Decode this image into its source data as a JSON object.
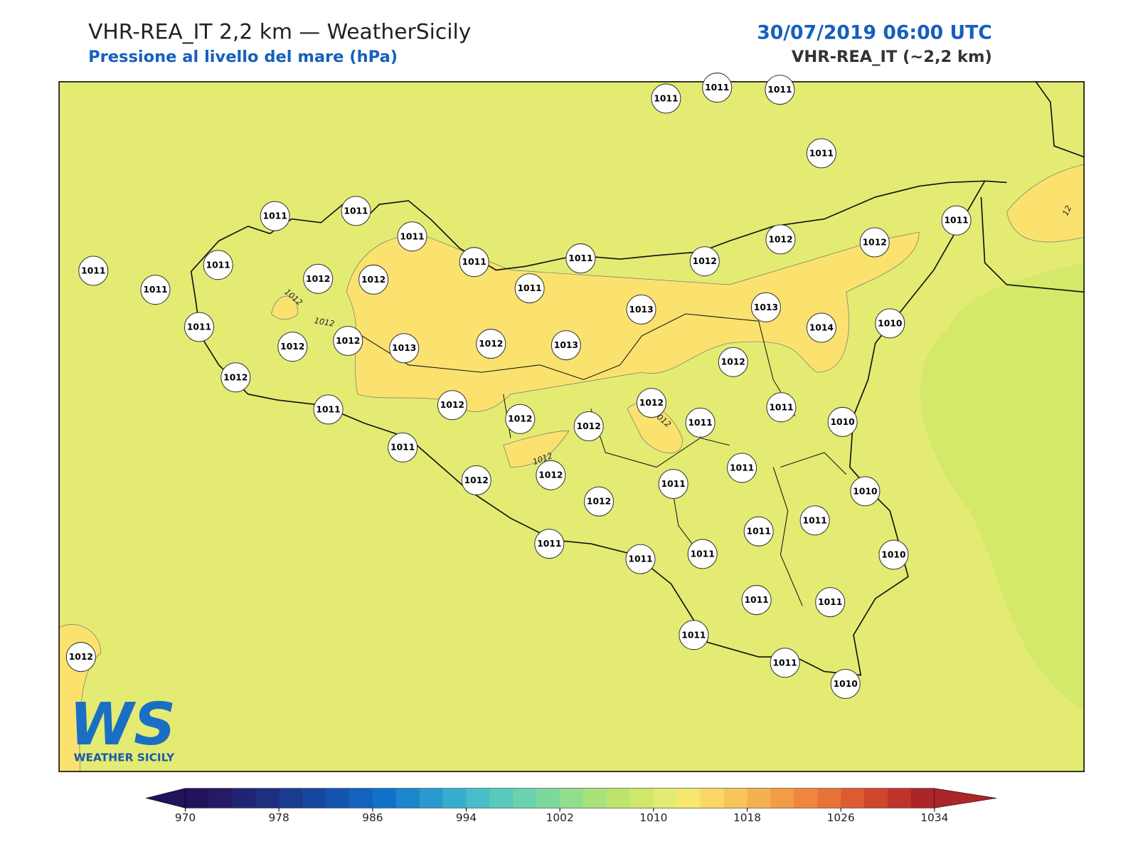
{
  "header": {
    "title": "VHR-REA_IT 2,2 km — WeatherSicily",
    "subtitle": "Pressione al livello del mare (hPa)",
    "datetime": "30/07/2019 06:00 UTC",
    "model": "VHR-REA_IT (~2,2 km)"
  },
  "map": {
    "stations": [
      1011,
      1011,
      1011,
      1011,
      1011,
      1011,
      1011,
      1011,
      1011,
      1011,
      1011,
      1011,
      1011,
      1012,
      1012,
      1011,
      1012,
      1012,
      1013,
      1012,
      1013,
      1012,
      1011,
      1012,
      1012,
      1012,
      1011,
      1012,
      1012,
      1012,
      1011,
      1011,
      1013,
      1012,
      1012,
      1012,
      1011,
      1013,
      1014,
      1010,
      1012,
      1012,
      1011,
      1011,
      1010,
      1011,
      1011,
      1010,
      1011,
      1011,
      1011,
      1010,
      1011,
      1011,
      1011,
      1011,
      1010,
      1012
    ],
    "contour_labels": [
      "1012",
      "1012",
      "1012",
      "1012",
      "12"
    ]
  },
  "colorbar": {
    "ticks": [
      970,
      978,
      986,
      994,
      1002,
      1010,
      1018,
      1026,
      1034
    ],
    "colors": [
      "#23135a",
      "#241a66",
      "#202472",
      "#1e2f80",
      "#1a3b8e",
      "#1748a0",
      "#1454b0",
      "#1163be",
      "#0f72c8",
      "#1c86cc",
      "#2a99d1",
      "#35aece",
      "#48bec8",
      "#5ac9bd",
      "#6ad2ae",
      "#7ed89c",
      "#93de8a",
      "#a8e27a",
      "#bde56c",
      "#d0e86a",
      "#e2eb73",
      "#f7e76c",
      "#fbd865",
      "#f8c55a",
      "#f5b04f",
      "#f29c45",
      "#ee873d",
      "#e87236",
      "#dd5b30",
      "#cf462d",
      "#bf332b",
      "#ab2529"
    ]
  },
  "logo": {
    "mark": "WS",
    "text": "WEATHER SICILY"
  }
}
